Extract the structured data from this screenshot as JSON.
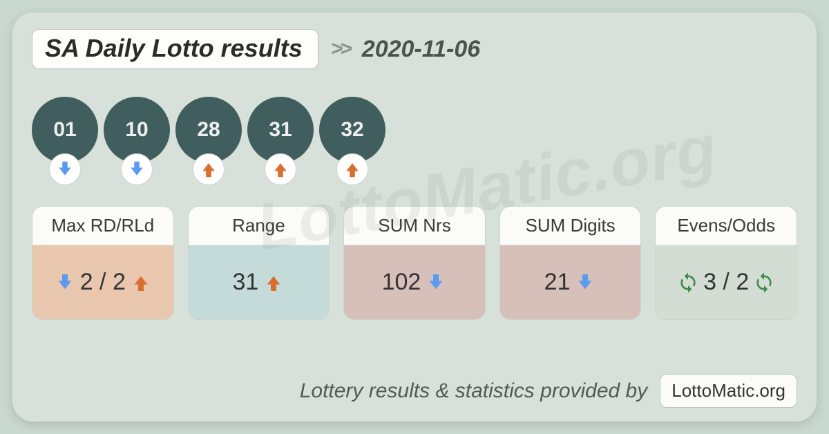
{
  "header": {
    "title": "SA Daily Lotto results",
    "chevron": ">>",
    "date": "2020-11-06"
  },
  "colors": {
    "page_bg": "#cad9cf",
    "card_bg": "#d7e1d9",
    "pill_bg": "#fdfdfb",
    "pill_border": "#b7c2ba",
    "ball_bg": "#3f5e5d",
    "ball_text": "#efefef",
    "arrow_down": "#5b9bef",
    "arrow_up": "#d96f2e",
    "recycle": "#3f8a4c",
    "stat_head_bg": "#fbfbf8",
    "stat_bodies": [
      "#e9c6ae",
      "#c4dbda",
      "#d7bfba",
      "#d7bfba",
      "#d3ddd4"
    ]
  },
  "balls": [
    {
      "value": "01",
      "dir": "down"
    },
    {
      "value": "10",
      "dir": "down"
    },
    {
      "value": "28",
      "dir": "up"
    },
    {
      "value": "31",
      "dir": "up"
    },
    {
      "value": "32",
      "dir": "up"
    }
  ],
  "stats": [
    {
      "label": "Max RD/RLd",
      "prefix_icon": "down",
      "value": "2 / 2",
      "suffix_icon": "up"
    },
    {
      "label": "Range",
      "prefix_icon": null,
      "value": "31",
      "suffix_icon": "up"
    },
    {
      "label": "SUM Nrs",
      "prefix_icon": null,
      "value": "102",
      "suffix_icon": "down"
    },
    {
      "label": "SUM Digits",
      "prefix_icon": null,
      "value": "21",
      "suffix_icon": "down"
    },
    {
      "label": "Evens/Odds",
      "prefix_icon": "recycle",
      "value": "3 / 2",
      "suffix_icon": "recycle"
    }
  ],
  "footer": {
    "text": "Lottery results & statistics provided by",
    "brand": "LottoMatic.org"
  },
  "watermark": "LottoMatic.org"
}
